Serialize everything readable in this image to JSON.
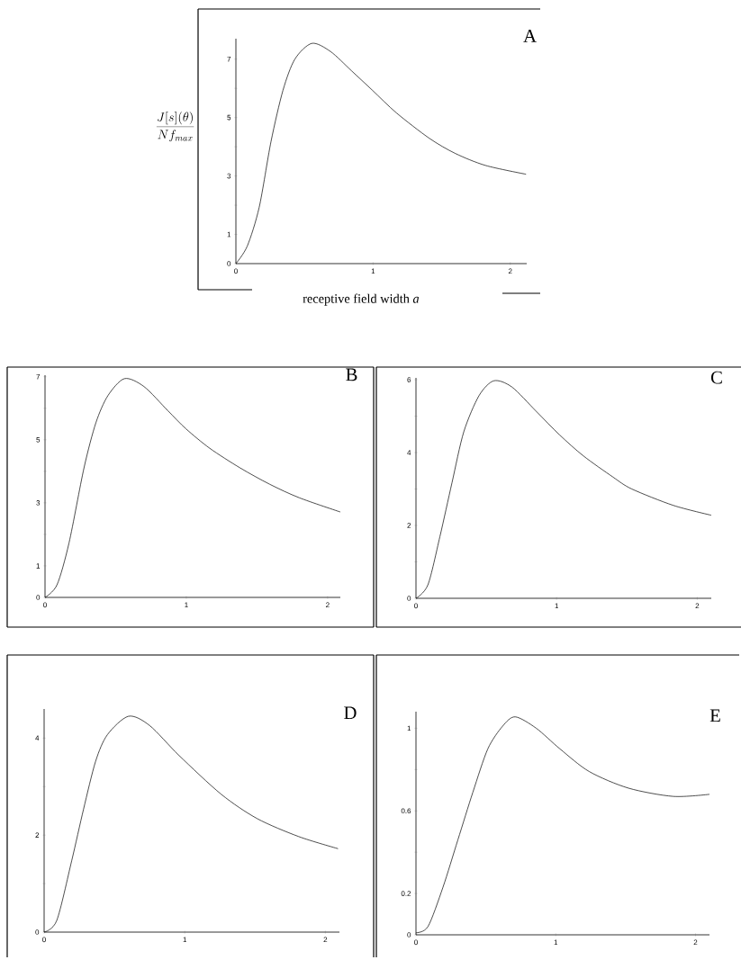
{
  "chart_data": [
    {
      "type": "line",
      "title": "A",
      "xlabel": "receptive field width *a*",
      "ylabel": "\\frac{J[s](\\theta)}{N f_{max}}",
      "x": [
        0,
        0.083,
        0.17,
        0.256,
        0.343,
        0.43,
        0.554,
        0.69,
        0.843,
        0.996,
        1.17,
        1.41,
        1.6,
        1.82,
        2.115
      ],
      "series": [
        {
          "color": "#000000",
          "values": [
            0,
            0.6,
            1.93,
            4.18,
            5.93,
            7.0,
            7.54,
            7.26,
            6.6,
            5.93,
            5.16,
            4.29,
            3.77,
            3.36,
            3.06
          ]
        }
      ],
      "xlim": [
        0,
        2.12
      ],
      "ylim": [
        0,
        7.7
      ],
      "xticks": [
        0,
        1,
        2
      ],
      "yticks": [
        0,
        1,
        {
          "value": 2,
          "label": null
        },
        3,
        {
          "value": 4,
          "label": null
        },
        5,
        {
          "value": 6,
          "label": null
        },
        7
      ]
    },
    {
      "type": "line",
      "title": "B",
      "x": [
        0,
        0.085,
        0.17,
        0.276,
        0.36,
        0.445,
        0.562,
        0.7,
        0.87,
        0.997,
        1.166,
        1.38,
        1.59,
        1.8,
        2.09
      ],
      "series": [
        {
          "color": "#000000",
          "values": [
            0,
            0.4,
            1.73,
            4.11,
            5.54,
            6.4,
            6.94,
            6.69,
            5.92,
            5.35,
            4.73,
            4.11,
            3.59,
            3.16,
            2.71
          ]
        }
      ],
      "xlim": [
        0,
        2.09
      ],
      "ylim": [
        0,
        7.05
      ],
      "xticks": [
        0,
        1,
        2
      ],
      "yticks": [
        0,
        1,
        {
          "value": 2,
          "label": null
        },
        3,
        {
          "value": 4,
          "label": null
        },
        5,
        {
          "value": 6,
          "label": null
        },
        7
      ]
    },
    {
      "type": "line",
      "title": "C",
      "x": [
        0,
        0.085,
        0.17,
        0.256,
        0.34,
        0.448,
        0.554,
        0.682,
        0.853,
        1.02,
        1.19,
        1.4,
        1.535,
        1.83,
        2.1
      ],
      "series": [
        {
          "color": "#000000",
          "values": [
            0,
            0.37,
            1.69,
            3.17,
            4.57,
            5.56,
            5.97,
            5.8,
            5.14,
            4.49,
            3.91,
            3.33,
            3.0,
            2.55,
            2.28
          ]
        }
      ],
      "xlim": [
        0,
        2.1
      ],
      "ylim": [
        0,
        6.05
      ],
      "xticks": [
        0,
        1,
        2
      ],
      "yticks": [
        0,
        {
          "value": 1,
          "label": null
        },
        2,
        {
          "value": 3,
          "label": null
        },
        4,
        {
          "value": 5,
          "label": null
        },
        6
      ]
    },
    {
      "type": "line",
      "title": "D",
      "x": [
        0,
        0.09,
        0.196,
        0.28,
        0.366,
        0.45,
        0.6,
        0.75,
        0.96,
        1.26,
        1.515,
        1.81,
        2.09
      ],
      "series": [
        {
          "color": "#000000",
          "values": [
            0,
            0.24,
            1.47,
            2.53,
            3.52,
            4.07,
            4.45,
            4.26,
            3.64,
            2.84,
            2.34,
            1.97,
            1.72
          ]
        }
      ],
      "xlim": [
        0,
        2.1
      ],
      "ylim": [
        0,
        4.6
      ],
      "xticks": [
        0,
        1,
        2
      ],
      "yticks": [
        0,
        {
          "value": 1,
          "label": null
        },
        2,
        {
          "value": 3,
          "label": null
        },
        4
      ]
    },
    {
      "type": "line",
      "title": "E",
      "x": [
        0,
        0.086,
        0.193,
        0.3,
        0.407,
        0.514,
        0.62,
        0.71,
        0.86,
        1.03,
        1.24,
        1.52,
        1.84,
        2.1
      ],
      "series": [
        {
          "color": "#000000",
          "values": [
            0.01,
            0.04,
            0.23,
            0.46,
            0.69,
            0.9,
            1.01,
            1.055,
            1.0,
            0.9,
            0.79,
            0.71,
            0.67,
            0.68
          ]
        }
      ],
      "xlim": [
        0,
        2.1
      ],
      "ylim": [
        0,
        1.08
      ],
      "xticks": [
        0,
        1,
        2
      ],
      "yticks": [
        0,
        0.2,
        {
          "value": 0.4,
          "label": null
        },
        0.6,
        {
          "value": 0.8,
          "label": null
        },
        1
      ]
    }
  ]
}
